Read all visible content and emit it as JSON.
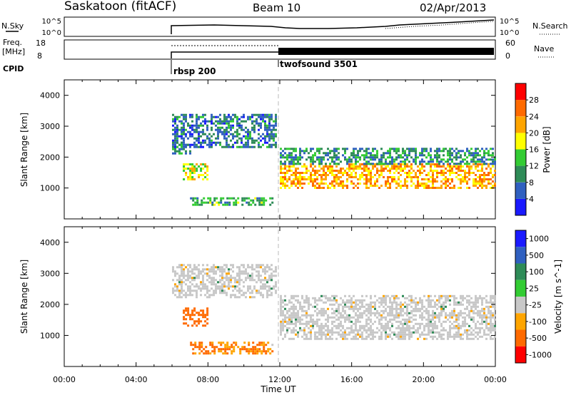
{
  "header": {
    "title": "Saskatoon (fitACF)",
    "beam": "Beam 10",
    "date": "02/Apr/2013"
  },
  "noise_panel": {
    "left_label": "N.Sky",
    "right_label": "N.Search",
    "left_ticks": [
      "10^5",
      "10^0"
    ],
    "right_ticks": [
      "10^5",
      "10^0"
    ]
  },
  "freq_panel": {
    "left_label_line1": "Freq.",
    "left_label_line2": "[MHz]",
    "right_label": "Nave",
    "left_ticks": [
      "18",
      "8"
    ],
    "right_ticks": [
      "60",
      "0"
    ]
  },
  "cpid": {
    "label": "CPID",
    "modes": [
      {
        "name": "rbsp 200",
        "start_hour": 6.0
      },
      {
        "name": "twofsound 3501",
        "start_hour": 12.0
      }
    ]
  },
  "colors": {
    "power_scale": [
      "#1a1aff",
      "#3060c0",
      "#2e8b57",
      "#33cc33",
      "#ffff00",
      "#ffa500",
      "#ff6a00",
      "#ff0000"
    ],
    "velocity_scale": [
      "#1a1aff",
      "#3060c0",
      "#2e8b57",
      "#33cc33",
      "#c8c8c8",
      "#ffa500",
      "#ff6a00",
      "#ff0000"
    ],
    "ground_scatter": "#c8c8c8"
  },
  "chart_data": [
    {
      "type": "heatmap",
      "name": "power",
      "ylabel": "Slant Range [km]",
      "xlabel": "",
      "xlim": [
        0,
        24
      ],
      "ylim": [
        0,
        4500
      ],
      "yticks": [
        "1000",
        "2000",
        "3000",
        "4000"
      ],
      "colorbar_label": "Power [dB]",
      "colorbar_ticks": [
        "4",
        "8",
        "12",
        "16",
        "20",
        "24",
        "28"
      ],
      "regions": [
        {
          "t_start": 6.0,
          "t_end": 7.0,
          "r_min": 2100,
          "r_max": 2500,
          "value_db": 10
        },
        {
          "t_start": 6.0,
          "t_end": 11.8,
          "r_min": 2300,
          "r_max": 3400,
          "value_db": 8
        },
        {
          "t_start": 6.6,
          "t_end": 8.0,
          "r_min": 1300,
          "r_max": 1800,
          "value_db": 18
        },
        {
          "t_start": 7.0,
          "t_end": 11.6,
          "r_min": 450,
          "r_max": 700,
          "value_db": 12
        },
        {
          "t_start": 12.0,
          "t_end": 24.0,
          "r_min": 1000,
          "r_max": 1800,
          "value_db": 22
        },
        {
          "t_start": 12.0,
          "t_end": 24.0,
          "r_min": 1800,
          "r_max": 2300,
          "value_db": 10
        }
      ]
    },
    {
      "type": "heatmap",
      "name": "velocity",
      "ylabel": "Slant Range [km]",
      "xlabel": "Time UT",
      "xlim": [
        0,
        24
      ],
      "ylim": [
        0,
        4500
      ],
      "yticks": [
        "1000",
        "2000",
        "3000",
        "4000"
      ],
      "xticks": [
        "00:00",
        "04:00",
        "08:00",
        "12:00",
        "16:00",
        "20:00",
        "00:00"
      ],
      "colorbar_label": "Velocity [m s^-1]",
      "colorbar_ticks": [
        "1000",
        "500",
        "100",
        "25",
        "-25",
        "-100",
        "-500",
        "-1000"
      ],
      "regions": [
        {
          "t_start": 6.0,
          "t_end": 11.8,
          "r_min": 2200,
          "r_max": 3300,
          "value": 0,
          "ground_scatter": true
        },
        {
          "t_start": 6.6,
          "t_end": 8.0,
          "r_min": 1300,
          "r_max": 1900,
          "value": -300
        },
        {
          "t_start": 7.0,
          "t_end": 11.6,
          "r_min": 450,
          "r_max": 800,
          "value": -120
        },
        {
          "t_start": 12.0,
          "t_end": 24.0,
          "r_min": 900,
          "r_max": 2300,
          "value": 0,
          "ground_scatter": true
        }
      ]
    }
  ]
}
